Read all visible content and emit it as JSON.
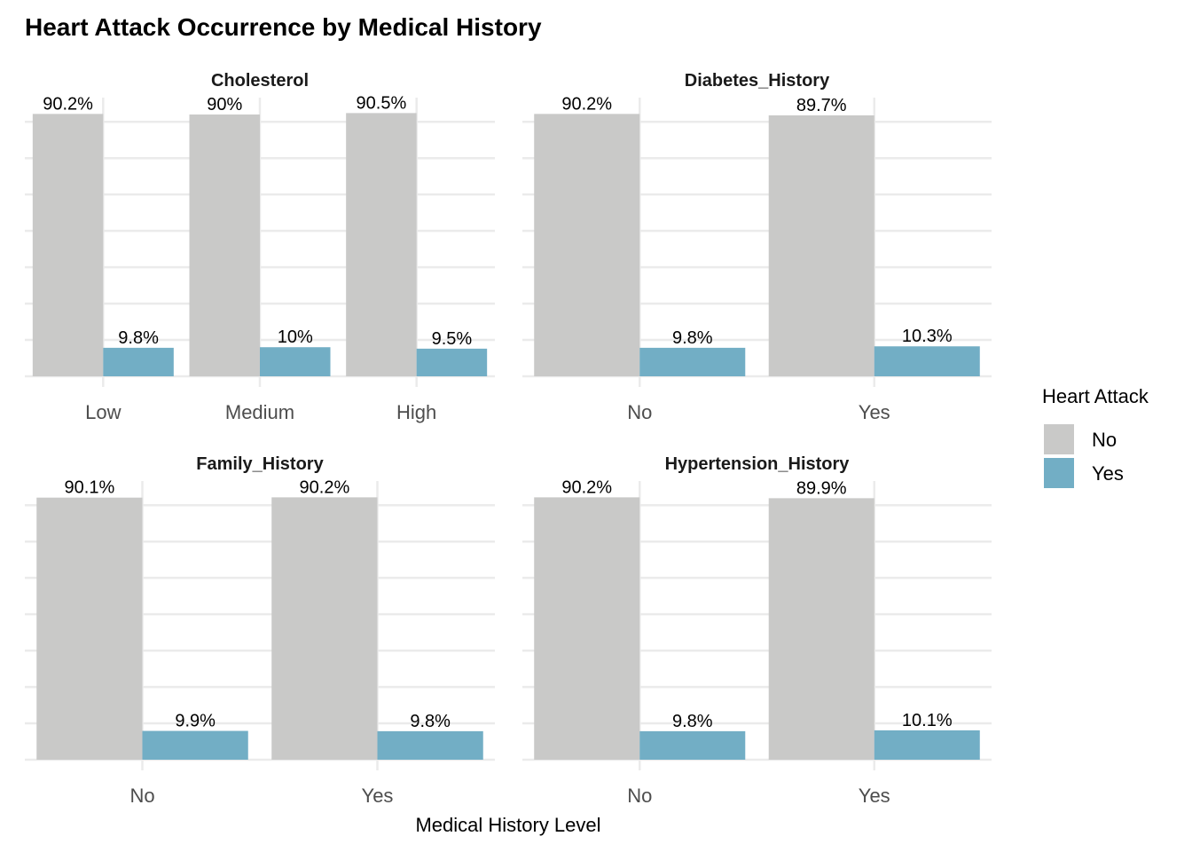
{
  "chart_data": {
    "type": "bar",
    "title": "Heart Attack Occurrence by Medical History",
    "xlabel": "Medical History Level",
    "ylabel": "",
    "ylim": [
      0,
      100
    ],
    "grid": true,
    "legend": {
      "title": "Heart Attack",
      "position": "right",
      "entries": [
        {
          "name": "No",
          "color": "#c9c9c8"
        },
        {
          "name": "Yes",
          "color": "#72aec5"
        }
      ]
    },
    "panels": [
      {
        "title": "Cholesterol",
        "categories": [
          "Low",
          "Medium",
          "High"
        ],
        "series": [
          {
            "name": "No",
            "values": [
              90.2,
              90,
              90.5
            ],
            "labels": [
              "90.2%",
              "90%",
              "90.5%"
            ]
          },
          {
            "name": "Yes",
            "values": [
              9.8,
              10,
              9.5
            ],
            "labels": [
              "9.8%",
              "10%",
              "9.5%"
            ]
          }
        ]
      },
      {
        "title": "Diabetes_History",
        "categories": [
          "No",
          "Yes"
        ],
        "series": [
          {
            "name": "No",
            "values": [
              90.2,
              89.7
            ],
            "labels": [
              "90.2%",
              "89.7%"
            ]
          },
          {
            "name": "Yes",
            "values": [
              9.8,
              10.3
            ],
            "labels": [
              "9.8%",
              "10.3%"
            ]
          }
        ]
      },
      {
        "title": "Family_History",
        "categories": [
          "No",
          "Yes"
        ],
        "series": [
          {
            "name": "No",
            "values": [
              90.1,
              90.2
            ],
            "labels": [
              "90.1%",
              "90.2%"
            ]
          },
          {
            "name": "Yes",
            "values": [
              9.9,
              9.8
            ],
            "labels": [
              "9.9%",
              "9.8%"
            ]
          }
        ]
      },
      {
        "title": "Hypertension_History",
        "categories": [
          "No",
          "Yes"
        ],
        "series": [
          {
            "name": "No",
            "values": [
              90.2,
              89.9
            ],
            "labels": [
              "90.2%",
              "89.9%"
            ]
          },
          {
            "name": "Yes",
            "values": [
              9.8,
              10.1
            ],
            "labels": [
              "9.8%",
              "10.1%"
            ]
          }
        ]
      }
    ]
  }
}
